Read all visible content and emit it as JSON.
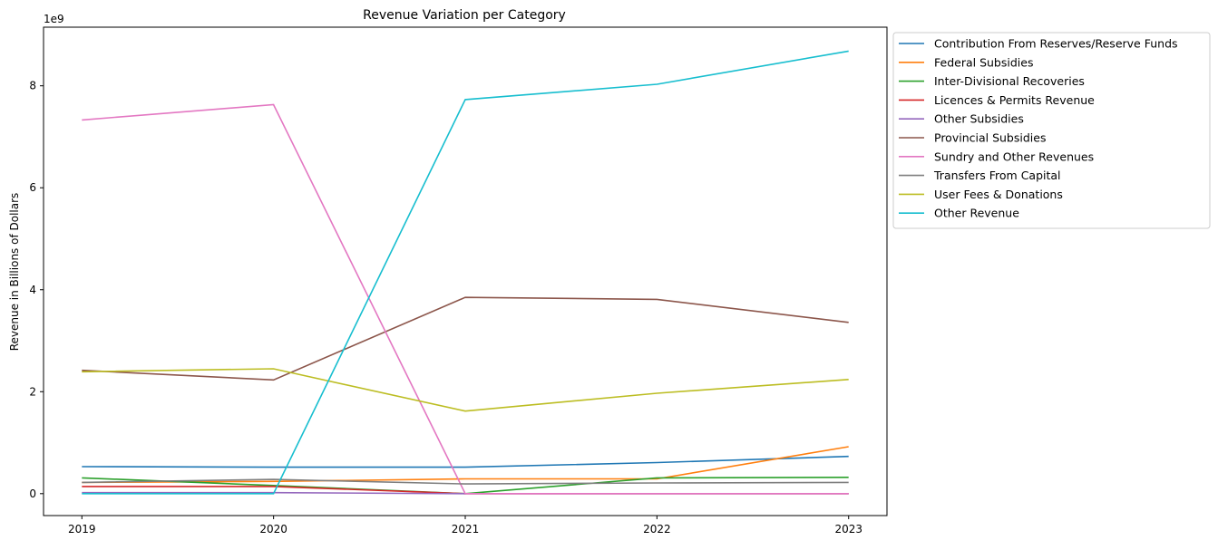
{
  "chart_data": {
    "type": "line",
    "title": "Revenue Variation per Category",
    "xlabel": "",
    "ylabel": "Revenue in Billions of Dollars",
    "offset_label": "1e9",
    "x": [
      "2019",
      "2020",
      "2021",
      "2022",
      "2023"
    ],
    "xlim": [
      -0.2,
      4.2
    ],
    "ylim": [
      -0.43,
      9.15
    ],
    "yticks": [
      0,
      2,
      4,
      6,
      8
    ],
    "grid": false,
    "legend_position": "outside-right",
    "series": [
      {
        "name": "Contribution From Reserves/Reserve Funds",
        "color": "#1f77b4",
        "values": [
          0.53,
          0.52,
          0.52,
          0.61,
          0.73
        ]
      },
      {
        "name": "Federal Subsidies",
        "color": "#ff7f0e",
        "values": [
          0.22,
          0.24,
          0.29,
          0.29,
          0.92
        ]
      },
      {
        "name": "Inter-Divisional Recoveries",
        "color": "#2ca02c",
        "values": [
          0.31,
          0.16,
          0.0,
          0.31,
          0.32
        ]
      },
      {
        "name": "Licences & Permits Revenue",
        "color": "#d62728",
        "values": [
          0.14,
          0.14,
          0.0,
          0.0,
          0.0
        ]
      },
      {
        "name": "Other Subsidies",
        "color": "#9467bd",
        "values": [
          0.02,
          0.02,
          0.0,
          0.0,
          0.0
        ]
      },
      {
        "name": "Provincial Subsidies",
        "color": "#8c564b",
        "values": [
          2.42,
          2.23,
          3.85,
          3.81,
          3.36
        ]
      },
      {
        "name": "Sundry and Other Revenues",
        "color": "#e377c2",
        "values": [
          7.33,
          7.63,
          0.0,
          0.0,
          0.0
        ]
      },
      {
        "name": "Transfers From Capital",
        "color": "#7f7f7f",
        "values": [
          0.22,
          0.28,
          0.19,
          0.21,
          0.22
        ]
      },
      {
        "name": "User Fees & Donations",
        "color": "#bcbd22",
        "values": [
          2.39,
          2.45,
          1.62,
          1.97,
          2.24
        ]
      },
      {
        "name": "Other Revenue",
        "color": "#17becf",
        "values": [
          0.0,
          0.0,
          7.73,
          8.03,
          8.68
        ]
      }
    ]
  }
}
